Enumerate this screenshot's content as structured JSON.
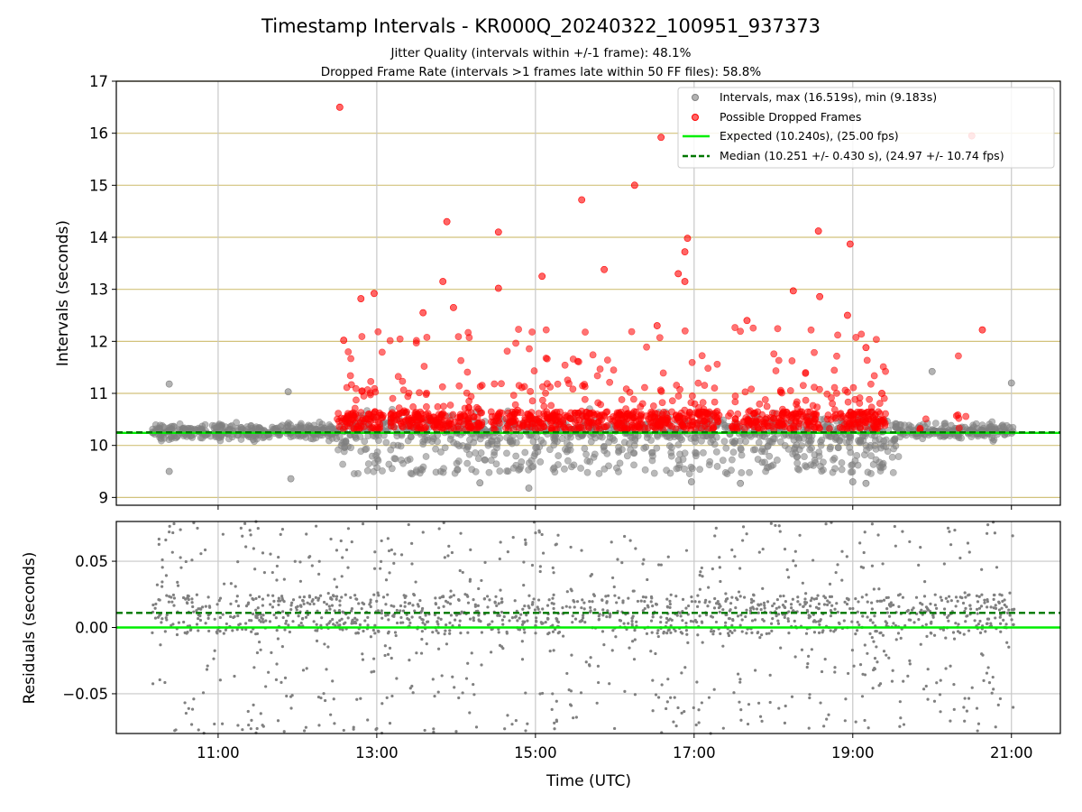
{
  "figure": {
    "title": "Timestamp Intervals - KR000Q_20240322_100951_937373",
    "subtitle_1": "Jitter Quality (intervals within +/-1 frame): 48.1%",
    "subtitle_2": "Dropped Frame Rate (intervals >1 frames late within 50 FF files): 58.8%",
    "colors": {
      "interval_points": "#808080",
      "dropped_points": "#ff0000",
      "expected_line": "#00ee00",
      "median_line": "#007700",
      "horizontal_grid": "#d2c27c",
      "vertical_grid": "#c8c8c8"
    }
  },
  "chart_data": [
    {
      "type": "scatter",
      "panel": "top",
      "ylabel": "Intervals (seconds)",
      "xlabel": "",
      "xlim": [
        "09:43",
        "21:37"
      ],
      "ylim": [
        8.85,
        17
      ],
      "yticks": [
        9,
        10,
        11,
        12,
        13,
        14,
        15,
        16,
        17
      ],
      "ytick_labels": [
        "9",
        "10",
        "11",
        "12",
        "13",
        "14",
        "15",
        "16",
        "17"
      ],
      "xticks": [
        "11:00",
        "13:00",
        "15:00",
        "17:00",
        "19:00",
        "21:00"
      ],
      "grid": "on",
      "legend_position": "top-right",
      "legend": [
        "Intervals, max (16.519s), min (9.183s)",
        "Possible Dropped Frames",
        "Expected (10.240s), (25.00 fps)",
        "Median (10.251 +/- 0.430 s), (24.97 +/- 10.74 fps)"
      ],
      "reference_lines": [
        {
          "label": "Expected (10.240s), (25.00 fps)",
          "y": 10.24,
          "style": "solid"
        },
        {
          "label": "Median (10.251 +/- 0.430 s), (24.97 +/- 10.74 fps)",
          "y": 10.251,
          "style": "dashed"
        }
      ],
      "series": [
        {
          "name": "Intervals, max (16.519s), min (9.183s)",
          "x_range": [
            "10:10",
            "21:02"
          ],
          "y_min": 9.183,
          "y_max": 16.519,
          "points": [
            {
              "x": "10:23",
              "y": 11.18
            },
            {
              "x": "10:23",
              "y": 9.5
            },
            {
              "x": "11:53",
              "y": 11.03
            },
            {
              "x": "11:55",
              "y": 9.36
            },
            {
              "x": "14:55",
              "y": 9.18
            },
            {
              "x": "20:00",
              "y": 11.42
            },
            {
              "x": "21:00",
              "y": 11.2
            },
            {
              "x": "16:58",
              "y": 9.3
            },
            {
              "x": "17:35",
              "y": 9.27
            },
            {
              "x": "19:10",
              "y": 9.27
            },
            {
              "x": "14:18",
              "y": 9.28
            },
            {
              "x": "19:00",
              "y": 9.3
            }
          ]
        },
        {
          "name": "Possible Dropped Frames",
          "x_range": [
            "12:30",
            "20:40"
          ],
          "points": [
            {
              "x": "12:32",
              "y": 16.5
            },
            {
              "x": "13:53",
              "y": 14.3
            },
            {
              "x": "14:32",
              "y": 14.1
            },
            {
              "x": "15:35",
              "y": 14.72
            },
            {
              "x": "15:52",
              "y": 13.38
            },
            {
              "x": "16:15",
              "y": 15.0
            },
            {
              "x": "16:35",
              "y": 15.92
            },
            {
              "x": "16:53",
              "y": 13.72
            },
            {
              "x": "16:55",
              "y": 13.98
            },
            {
              "x": "18:34",
              "y": 14.12
            },
            {
              "x": "18:58",
              "y": 13.87
            },
            {
              "x": "20:30",
              "y": 15.95
            },
            {
              "x": "20:38",
              "y": 12.22
            },
            {
              "x": "13:58",
              "y": 12.65
            },
            {
              "x": "13:50",
              "y": 13.15
            },
            {
              "x": "12:58",
              "y": 12.92
            },
            {
              "x": "12:48",
              "y": 12.82
            },
            {
              "x": "15:05",
              "y": 13.25
            },
            {
              "x": "14:32",
              "y": 13.02
            },
            {
              "x": "16:48",
              "y": 13.3
            },
            {
              "x": "16:53",
              "y": 13.15
            },
            {
              "x": "18:15",
              "y": 12.97
            },
            {
              "x": "18:35",
              "y": 12.86
            },
            {
              "x": "17:40",
              "y": 12.4
            },
            {
              "x": "18:56",
              "y": 12.5
            },
            {
              "x": "12:35",
              "y": 12.02
            },
            {
              "x": "16:32",
              "y": 12.3
            },
            {
              "x": "13:35",
              "y": 12.55
            },
            {
              "x": "19:10",
              "y": 11.88
            },
            {
              "x": "19:22",
              "y": 11.0
            }
          ]
        }
      ]
    },
    {
      "type": "scatter",
      "panel": "bottom",
      "ylabel": "Residuals (seconds)",
      "xlabel": "Time (UTC)",
      "xlim": [
        "09:43",
        "21:37"
      ],
      "ylim": [
        -0.08,
        0.08
      ],
      "yticks": [
        -0.05,
        0.0,
        0.05
      ],
      "ytick_labels": [
        "−0.05",
        "0.00",
        "0.05"
      ],
      "xticks": [
        "11:00",
        "13:00",
        "15:00",
        "17:00",
        "19:00",
        "21:00"
      ],
      "xtick_labels": [
        "11:00",
        "13:00",
        "15:00",
        "17:00",
        "19:00",
        "21:00"
      ],
      "grid": "on",
      "reference_lines": [
        {
          "y": 0.0,
          "style": "solid"
        },
        {
          "y": 0.011,
          "style": "dashed"
        }
      ],
      "series": [
        {
          "x_range": [
            "10:10",
            "21:02"
          ],
          "y_range": [
            -0.08,
            0.08
          ],
          "dense_band": [
            -0.005,
            0.025
          ]
        }
      ]
    }
  ]
}
